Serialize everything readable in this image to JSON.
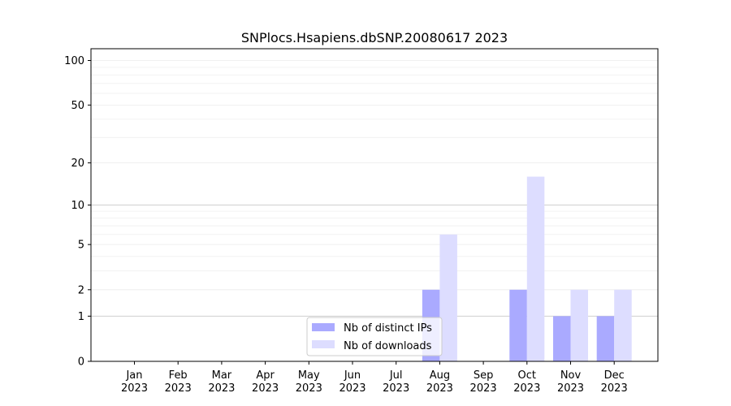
{
  "chart_data": {
    "type": "bar",
    "title": "SNPlocs.Hsapiens.dbSNP.20080617 2023",
    "xlabel": "",
    "ylabel": "",
    "y_scale": "log(1+y)",
    "ylim": [
      0,
      120
    ],
    "yticks": [
      "0",
      "1",
      "2",
      "5",
      "10",
      "20",
      "50",
      "100"
    ],
    "grid": "horizontal",
    "legend_position": "bottom-center",
    "categories": [
      {
        "month": "Jan",
        "year": "2023"
      },
      {
        "month": "Feb",
        "year": "2023"
      },
      {
        "month": "Mar",
        "year": "2023"
      },
      {
        "month": "Apr",
        "year": "2023"
      },
      {
        "month": "May",
        "year": "2023"
      },
      {
        "month": "Jun",
        "year": "2023"
      },
      {
        "month": "Jul",
        "year": "2023"
      },
      {
        "month": "Aug",
        "year": "2023"
      },
      {
        "month": "Sep",
        "year": "2023"
      },
      {
        "month": "Oct",
        "year": "2023"
      },
      {
        "month": "Nov",
        "year": "2023"
      },
      {
        "month": "Dec",
        "year": "2023"
      }
    ],
    "series": [
      {
        "name": "Nb of distinct IPs",
        "color": "#aaaaff",
        "values": [
          0,
          0,
          0,
          0,
          0,
          0,
          0,
          2,
          0,
          2,
          1,
          1
        ]
      },
      {
        "name": "Nb of downloads",
        "color": "#ddddff",
        "values": [
          0,
          0,
          0,
          0,
          0,
          0,
          0,
          6,
          0,
          16,
          2,
          2
        ]
      }
    ]
  }
}
